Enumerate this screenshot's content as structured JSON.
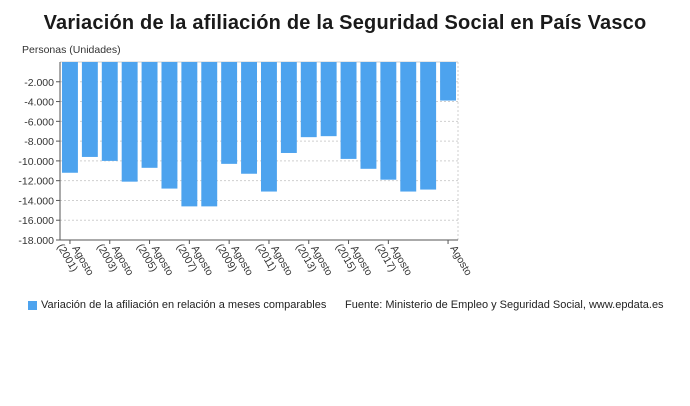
{
  "colors": {
    "bar": "#4da3ee",
    "grid": "#cfcfcf",
    "axis": "#555555",
    "text": "#333333"
  },
  "chart_data": {
    "type": "bar",
    "title": "Variación de la afiliación de la Seguridad Social en País Vasco",
    "ylabel": "Personas (Unidades)",
    "ylim": [
      -18000,
      0
    ],
    "yticks": [
      -2000,
      -4000,
      -6000,
      -8000,
      -10000,
      -12000,
      -14000,
      -16000,
      -18000
    ],
    "ytick_labels": [
      "-2.000",
      "-4.000",
      "-6.000",
      "-8.000",
      "-10.000",
      "-12.000",
      "-14.000",
      "-16.000",
      "-18.000"
    ],
    "grid": true,
    "legend_position": "bottom-left",
    "xtick_labels": [
      "Agosto (2001)",
      "Agosto (2003)",
      "Agosto (2005)",
      "Agosto (2007)",
      "Agosto (2009)",
      "Agosto (2011)",
      "Agosto (2013)",
      "Agosto (2015)",
      "Agosto (2017)",
      "Agosto"
    ],
    "series": [
      {
        "name": "Variación de la afiliación en relación a meses comparables",
        "values": [
          -11200,
          -9600,
          -10000,
          -12100,
          -10700,
          -12800,
          -14600,
          -14600,
          -10300,
          -11300,
          -13100,
          -9200,
          -7600,
          -7500,
          -9800,
          -10800,
          -11900,
          -13100,
          -12900,
          -3900
        ]
      }
    ]
  },
  "source_text": "Fuente: Ministerio de Empleo y Seguridad Social, www.epdata.es"
}
